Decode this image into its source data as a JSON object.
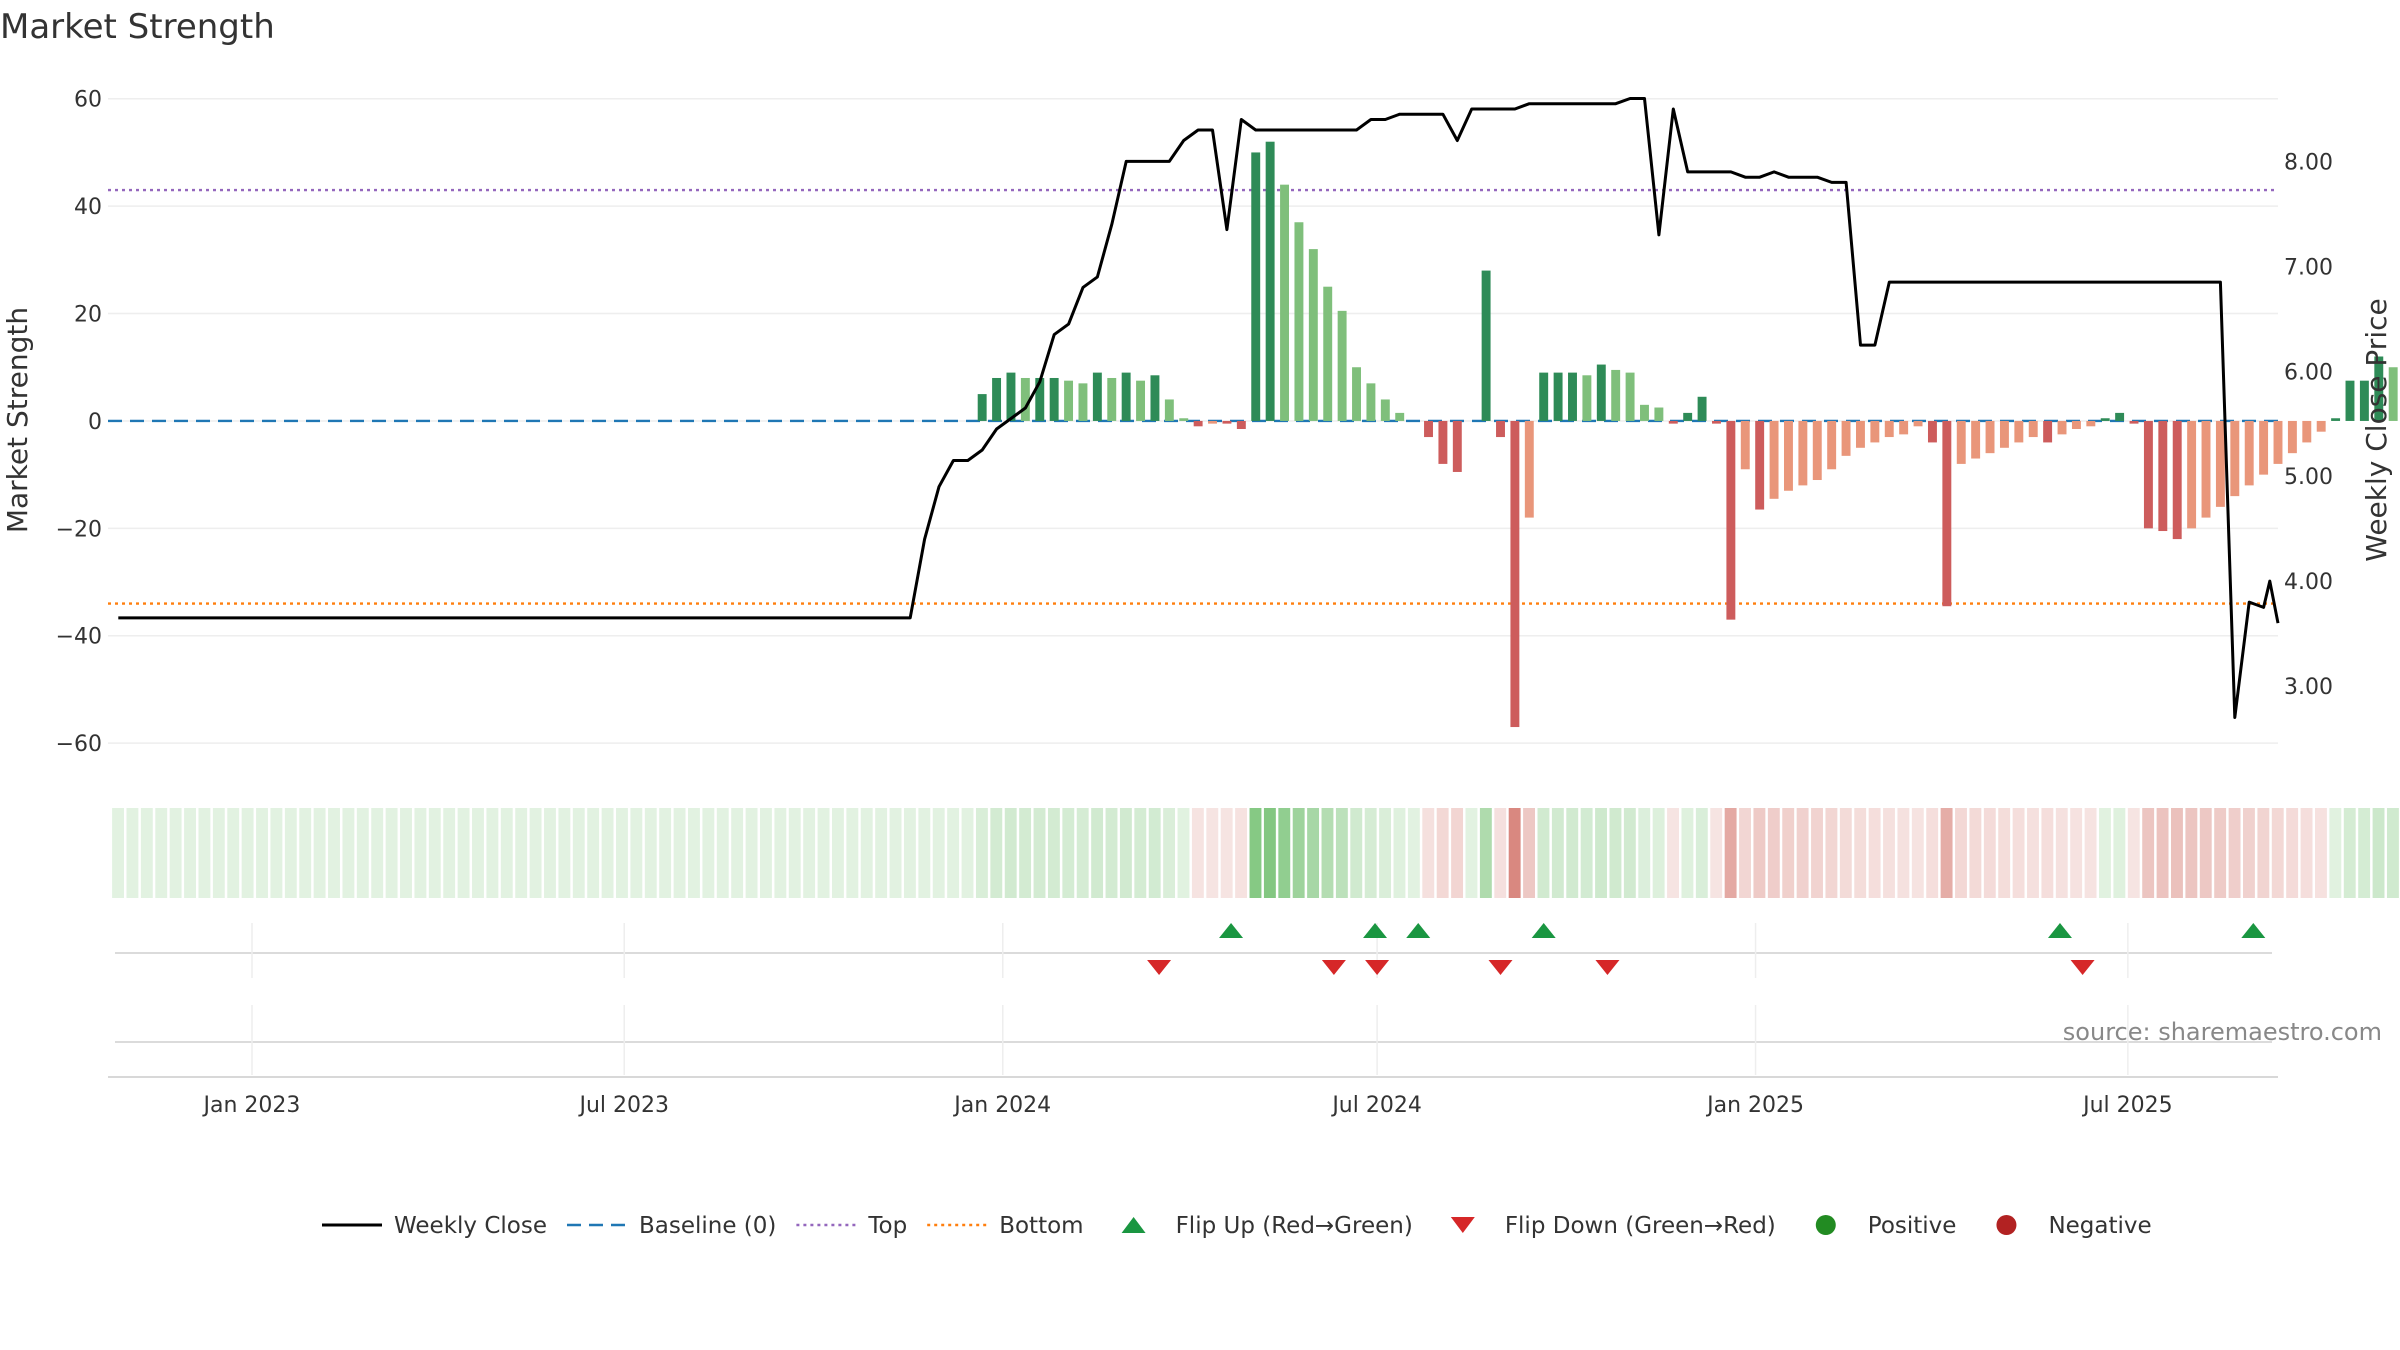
{
  "chart_data": {
    "type": "bar",
    "title": "Market Strength",
    "ylabel": "Market Strength",
    "y2label": "Weekly Close Price",
    "ylim": [
      -65,
      62
    ],
    "y2lim": [
      2.2,
      8.7
    ],
    "yticks": [
      60,
      40,
      20,
      0,
      -20,
      -40,
      -60
    ],
    "yticklabels": [
      "60",
      "40",
      "20",
      "0",
      "−20",
      "−40",
      "−60"
    ],
    "y2ticks": [
      8,
      7,
      6,
      5,
      4,
      3
    ],
    "y2ticklabels": [
      "8.00",
      "7.00",
      "6.00",
      "5.00",
      "4.00",
      "3.00"
    ],
    "x_range": [
      "2022-10-23",
      "2025-09-12"
    ],
    "xticks": [
      "2023-01-01",
      "2023-07-01",
      "2024-01-01",
      "2024-07-01",
      "2025-01-01",
      "2025-07-01"
    ],
    "xticklabels": [
      "Jan 2023",
      "Jul 2023",
      "Jan 2024",
      "Jul 2024",
      "Jan 2025",
      "Jul 2025"
    ],
    "grid": true,
    "legend_placement": "bottom",
    "reference_lines": [
      {
        "name": "Baseline (0)",
        "value": 0,
        "axis": "left",
        "color": "#1f77b4",
        "style": "dashed"
      },
      {
        "name": "Top",
        "value": 43,
        "axis": "left",
        "color": "#9467bd",
        "style": "dotted"
      },
      {
        "name": "Bottom",
        "value": -34,
        "axis": "left",
        "color": "#ff7f0e",
        "style": "dotted"
      }
    ],
    "strength_series": {
      "name": "Market Strength",
      "start_date": "2022-10-28",
      "interval_days": 7,
      "values": [
        0,
        0,
        0,
        0,
        0,
        0,
        0,
        0,
        0,
        0,
        0,
        0,
        0,
        0,
        0,
        0,
        0,
        0,
        0,
        0,
        0,
        0,
        0,
        0,
        0,
        0,
        0,
        0,
        0,
        0,
        0,
        0,
        0,
        0,
        0,
        0,
        0,
        0,
        0,
        0,
        0,
        0,
        0,
        0,
        0,
        0,
        0,
        0,
        0,
        0,
        0,
        0,
        0,
        0,
        0,
        0,
        0,
        0,
        0,
        0,
        5,
        8,
        9,
        8,
        8,
        8,
        7.5,
        7,
        9,
        8,
        9,
        7.5,
        8.5,
        4,
        0.5,
        -1,
        -0.5,
        -0.5,
        -1.5,
        50,
        52,
        44,
        37,
        32,
        25,
        20.5,
        10,
        7,
        4,
        1.5,
        0,
        -3,
        -8,
        -9.5,
        0,
        28,
        -3,
        -57,
        -18,
        9,
        9,
        9,
        8.5,
        10.5,
        9.5,
        9,
        3,
        2.5,
        -0.5,
        1.5,
        4.5,
        -0.5,
        -37,
        -9,
        -16.5,
        -14.5,
        -13,
        -12,
        -11,
        -9,
        -6.5,
        -5,
        -4,
        -3,
        -2.5,
        -1,
        -4,
        -34.5,
        -8,
        -7,
        -6,
        -5,
        -4,
        -3,
        -4,
        -2.5,
        -1.5,
        -1,
        0.5,
        1.5,
        -0.5,
        -20,
        -20.5,
        -22,
        -20,
        -18,
        -16,
        -14,
        -12,
        -10,
        -8,
        -6,
        -4,
        -2,
        0.5,
        7.5,
        7.5,
        12,
        10
      ]
    },
    "weekly_close": {
      "name": "Weekly Close",
      "axis": "right",
      "points": [
        [
          "2022-10-28",
          3.65
        ],
        [
          "2023-11-17",
          3.65
        ],
        [
          "2023-11-24",
          4.4
        ],
        [
          "2023-12-01",
          4.9
        ],
        [
          "2023-12-08",
          5.15
        ],
        [
          "2023-12-15",
          5.15
        ],
        [
          "2023-12-22",
          5.25
        ],
        [
          "2023-12-29",
          5.45
        ],
        [
          "2024-01-05",
          5.55
        ],
        [
          "2024-01-12",
          5.65
        ],
        [
          "2024-01-19",
          5.9
        ],
        [
          "2024-01-26",
          6.35
        ],
        [
          "2024-02-02",
          6.45
        ],
        [
          "2024-02-09",
          6.8
        ],
        [
          "2024-02-16",
          6.9
        ],
        [
          "2024-02-23",
          7.4
        ],
        [
          "2024-03-01",
          8.0
        ],
        [
          "2024-03-08",
          8.0
        ],
        [
          "2024-03-15",
          8.0
        ],
        [
          "2024-03-22",
          8.0
        ],
        [
          "2024-03-29",
          8.2
        ],
        [
          "2024-04-05",
          8.3
        ],
        [
          "2024-04-12",
          8.3
        ],
        [
          "2024-04-19",
          7.35
        ],
        [
          "2024-04-26",
          8.4
        ],
        [
          "2024-05-03",
          8.3
        ],
        [
          "2024-05-10",
          8.3
        ],
        [
          "2024-05-17",
          8.3
        ],
        [
          "2024-05-24",
          8.3
        ],
        [
          "2024-05-31",
          8.3
        ],
        [
          "2024-06-07",
          8.3
        ],
        [
          "2024-06-14",
          8.3
        ],
        [
          "2024-06-21",
          8.3
        ],
        [
          "2024-06-28",
          8.4
        ],
        [
          "2024-07-05",
          8.4
        ],
        [
          "2024-07-12",
          8.45
        ],
        [
          "2024-07-19",
          8.45
        ],
        [
          "2024-07-26",
          8.45
        ],
        [
          "2024-08-02",
          8.45
        ],
        [
          "2024-08-09",
          8.2
        ],
        [
          "2024-08-16",
          8.5
        ],
        [
          "2024-08-23",
          8.5
        ],
        [
          "2024-08-30",
          8.5
        ],
        [
          "2024-09-06",
          8.5
        ],
        [
          "2024-09-13",
          8.55
        ],
        [
          "2024-09-20",
          8.55
        ],
        [
          "2024-09-27",
          8.55
        ],
        [
          "2024-10-04",
          8.55
        ],
        [
          "2024-10-11",
          8.55
        ],
        [
          "2024-10-18",
          8.55
        ],
        [
          "2024-10-25",
          8.55
        ],
        [
          "2024-11-01",
          8.6
        ],
        [
          "2024-11-08",
          8.6
        ],
        [
          "2024-11-15",
          7.3
        ],
        [
          "2024-11-22",
          8.5
        ],
        [
          "2024-11-29",
          7.9
        ],
        [
          "2024-12-06",
          7.9
        ],
        [
          "2024-12-13",
          7.9
        ],
        [
          "2024-12-20",
          7.9
        ],
        [
          "2024-12-27",
          7.85
        ],
        [
          "2025-01-03",
          7.85
        ],
        [
          "2025-01-10",
          7.9
        ],
        [
          "2025-01-17",
          7.85
        ],
        [
          "2025-01-24",
          7.85
        ],
        [
          "2025-01-31",
          7.85
        ],
        [
          "2025-02-07",
          7.8
        ],
        [
          "2025-02-14",
          7.8
        ],
        [
          "2025-02-21",
          6.25
        ],
        [
          "2025-02-28",
          6.25
        ],
        [
          "2025-03-07",
          6.85
        ],
        [
          "2025-08-15",
          6.85
        ],
        [
          "2025-08-22",
          2.7
        ],
        [
          "2025-08-29",
          3.8
        ],
        [
          "2025-09-05",
          3.75
        ],
        [
          "2025-09-08",
          4.0
        ],
        [
          "2025-09-12",
          3.6
        ]
      ]
    },
    "flip_up_dates": [
      "2024-04-21",
      "2024-06-30",
      "2024-07-21",
      "2024-09-20",
      "2025-05-29",
      "2025-08-31"
    ],
    "flip_down_dates": [
      "2024-03-17",
      "2024-06-10",
      "2024-07-01",
      "2024-08-30",
      "2024-10-21",
      "2025-06-09"
    ],
    "legend": [
      {
        "label": "Weekly Close",
        "marker": "line",
        "color": "#000000"
      },
      {
        "label": "Baseline (0)",
        "marker": "dashed",
        "color": "#1f77b4"
      },
      {
        "label": "Top",
        "marker": "dotted",
        "color": "#9467bd"
      },
      {
        "label": "Bottom",
        "marker": "dotted",
        "color": "#ff7f0e"
      },
      {
        "label": "Flip Up (Red→Green)",
        "marker": "triangle-up",
        "color": "#1a9641"
      },
      {
        "label": "Flip Down (Green→Red)",
        "marker": "triangle-down",
        "color": "#d62728"
      },
      {
        "label": "Positive",
        "marker": "circle",
        "color": "#228b22"
      },
      {
        "label": "Negative",
        "marker": "circle",
        "color": "#b22222"
      }
    ],
    "colors": {
      "positive_strong": "#2e8b57",
      "positive_weak": "#7fbf7b",
      "negative_strong": "#cd5c5c",
      "negative_weak": "#e9967a",
      "flip_up": "#1a9641",
      "flip_down": "#d62728"
    }
  },
  "source_text": "source: sharemaestro.com"
}
